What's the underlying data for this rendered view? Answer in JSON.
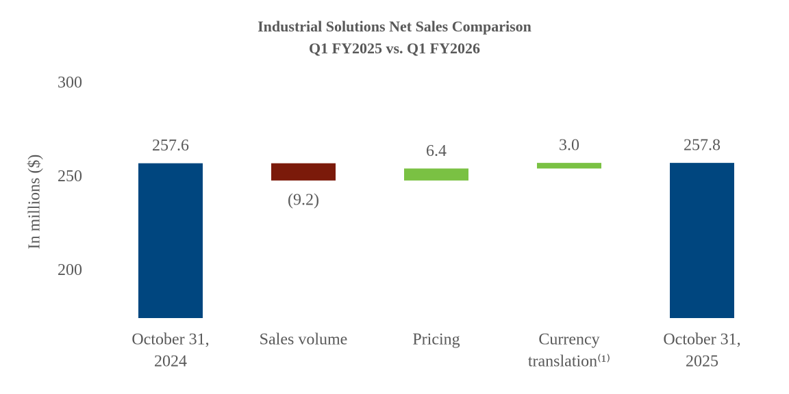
{
  "chart_data": {
    "type": "waterfall",
    "title": "Industrial Solutions Net Sales Comparison",
    "subtitle": "Q1 FY2025 vs. Q1 FY2026",
    "y_label": "In millions ($)",
    "categories": [
      [
        "October 31,",
        "2024"
      ],
      [
        "Sales volume"
      ],
      [
        "Pricing"
      ],
      [
        "Currency",
        "translation⁽¹⁾"
      ],
      [
        "October 31,",
        "2025"
      ]
    ],
    "values": [
      257.6,
      -9.2,
      6.4,
      3.0,
      257.8
    ],
    "value_labels": [
      "257.6",
      "(9.2)",
      "6.4",
      "3.0",
      "257.8"
    ],
    "colors": {
      "total": "#00467f",
      "increase": "#7ac143",
      "decrease": "#7b1a0a"
    },
    "ylim": [
      175,
      300
    ],
    "yticks": [
      200,
      250,
      300
    ],
    "grid": false
  }
}
